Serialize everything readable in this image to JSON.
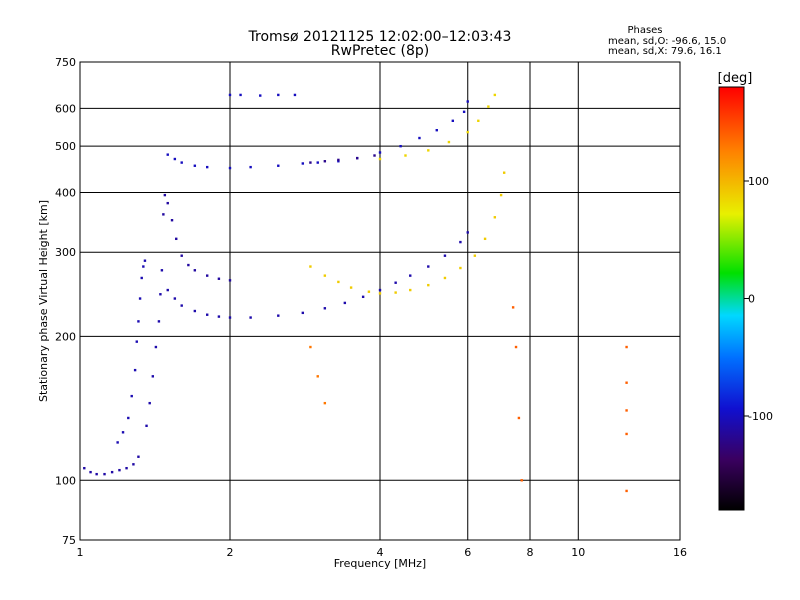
{
  "chart_data": {
    "type": "scatter",
    "title": "Tromsø 20121125 12:02:00–12:03:43",
    "subtitle": "RwPretec (8p)",
    "xlabel": "Frequency [MHz]",
    "ylabel": "Stationary phase Virtual Height [km]",
    "x_scale": "log",
    "y_scale": "log",
    "xlim": [
      1,
      16
    ],
    "ylim": [
      75,
      750
    ],
    "grid": true,
    "x_ticks": [
      1,
      2,
      4,
      6,
      8,
      10,
      16
    ],
    "x_tick_labels": [
      "1",
      "2",
      "4",
      "6",
      "8",
      "10",
      "16"
    ],
    "y_ticks": [
      75,
      100,
      200,
      300,
      400,
      500,
      600,
      750
    ],
    "y_tick_labels": [
      "75",
      "100",
      "200",
      "300",
      "400",
      "500",
      "600",
      "750"
    ],
    "phase_box": {
      "title": "Phases",
      "line1": "mean, sd,O:  -96.6, 15.0",
      "line2": "mean, sd,X:  79.6, 16.1"
    },
    "colorbar": {
      "label": "[deg]",
      "range": [
        -180,
        180
      ],
      "ticks": [
        100,
        0,
        -100
      ],
      "tick_labels": [
        "100",
        "0",
        "-100"
      ]
    },
    "traces": [
      {
        "phase": -110,
        "points": [
          [
            1.02,
            106
          ],
          [
            1.05,
            104
          ],
          [
            1.08,
            103
          ],
          [
            1.12,
            103
          ],
          [
            1.16,
            104
          ],
          [
            1.2,
            105
          ],
          [
            1.24,
            106
          ],
          [
            1.28,
            108
          ],
          [
            1.31,
            112
          ]
        ]
      },
      {
        "phase": -105,
        "points": [
          [
            1.19,
            120
          ],
          [
            1.22,
            126
          ],
          [
            1.25,
            135
          ],
          [
            1.27,
            150
          ],
          [
            1.29,
            170
          ],
          [
            1.3,
            195
          ],
          [
            1.31,
            215
          ],
          [
            1.32,
            240
          ],
          [
            1.33,
            265
          ],
          [
            1.34,
            280
          ],
          [
            1.35,
            288
          ]
        ]
      },
      {
        "phase": -108,
        "points": [
          [
            1.36,
            130
          ],
          [
            1.38,
            145
          ],
          [
            1.4,
            165
          ],
          [
            1.42,
            190
          ],
          [
            1.44,
            215
          ],
          [
            1.45,
            245
          ],
          [
            1.46,
            275
          ]
        ]
      },
      {
        "phase": -112,
        "points": [
          [
            1.47,
            360
          ],
          [
            1.48,
            395
          ],
          [
            1.5,
            380
          ],
          [
            1.53,
            350
          ],
          [
            1.56,
            320
          ],
          [
            1.6,
            295
          ],
          [
            1.65,
            282
          ],
          [
            1.7,
            275
          ],
          [
            1.8,
            268
          ],
          [
            1.9,
            264
          ],
          [
            2.0,
            262
          ]
        ]
      },
      {
        "phase": -108,
        "points": [
          [
            1.5,
            250
          ],
          [
            1.55,
            240
          ],
          [
            1.6,
            232
          ],
          [
            1.7,
            226
          ],
          [
            1.8,
            222
          ],
          [
            1.9,
            220
          ],
          [
            2.0,
            219
          ],
          [
            2.2,
            219
          ],
          [
            2.5,
            221
          ],
          [
            2.8,
            224
          ],
          [
            3.1,
            229
          ],
          [
            3.4,
            235
          ],
          [
            3.7,
            242
          ],
          [
            4.0,
            250
          ],
          [
            4.3,
            259
          ],
          [
            4.6,
            268
          ],
          [
            5.0,
            280
          ],
          [
            5.4,
            295
          ],
          [
            5.8,
            315
          ],
          [
            6.0,
            330
          ]
        ]
      },
      {
        "phase": 90,
        "points": [
          [
            2.9,
            280
          ],
          [
            3.1,
            268
          ],
          [
            3.3,
            260
          ],
          [
            3.5,
            253
          ],
          [
            3.8,
            248
          ],
          [
            4.0,
            246
          ],
          [
            4.3,
            247
          ],
          [
            4.6,
            250
          ],
          [
            5.0,
            256
          ],
          [
            5.4,
            265
          ],
          [
            5.8,
            278
          ],
          [
            6.2,
            295
          ],
          [
            6.5,
            320
          ],
          [
            6.8,
            355
          ],
          [
            7.0,
            395
          ],
          [
            7.1,
            440
          ]
        ]
      },
      {
        "phase": -100,
        "points": [
          [
            1.5,
            480
          ],
          [
            1.55,
            470
          ],
          [
            1.6,
            462
          ],
          [
            1.7,
            455
          ],
          [
            1.8,
            452
          ],
          [
            2.0,
            450
          ],
          [
            2.2,
            452
          ],
          [
            2.5,
            455
          ],
          [
            2.8,
            460
          ],
          [
            3.0,
            462
          ],
          [
            3.3,
            465
          ],
          [
            3.6,
            472
          ],
          [
            4.0,
            485
          ],
          [
            4.4,
            500
          ],
          [
            4.8,
            520
          ],
          [
            5.2,
            540
          ],
          [
            5.6,
            565
          ],
          [
            5.9,
            590
          ],
          [
            6.0,
            620
          ]
        ]
      },
      {
        "phase": -120,
        "points": [
          [
            2.9,
            462
          ],
          [
            3.1,
            465
          ],
          [
            3.3,
            468
          ],
          [
            3.6,
            472
          ],
          [
            3.9,
            478
          ]
        ]
      },
      {
        "phase": 85,
        "points": [
          [
            4.0,
            470
          ],
          [
            4.5,
            478
          ],
          [
            5.0,
            490
          ],
          [
            5.5,
            510
          ],
          [
            6.0,
            535
          ],
          [
            6.3,
            565
          ],
          [
            6.6,
            605
          ],
          [
            6.8,
            640
          ]
        ]
      },
      {
        "phase": -100,
        "points": [
          [
            2.0,
            640
          ],
          [
            2.1,
            640
          ],
          [
            2.3,
            638
          ],
          [
            2.5,
            640
          ],
          [
            2.7,
            640
          ]
        ]
      },
      {
        "phase": 130,
        "points": [
          [
            2.9,
            190
          ],
          [
            3.0,
            165
          ],
          [
            3.1,
            145
          ]
        ]
      },
      {
        "phase": 140,
        "points": [
          [
            7.4,
            230
          ],
          [
            7.5,
            190
          ],
          [
            7.6,
            135
          ],
          [
            7.7,
            100
          ]
        ]
      },
      {
        "phase": 140,
        "points": [
          [
            12.5,
            190
          ],
          [
            12.5,
            160
          ],
          [
            12.5,
            140
          ],
          [
            12.5,
            125
          ],
          [
            12.5,
            95
          ]
        ]
      }
    ]
  }
}
